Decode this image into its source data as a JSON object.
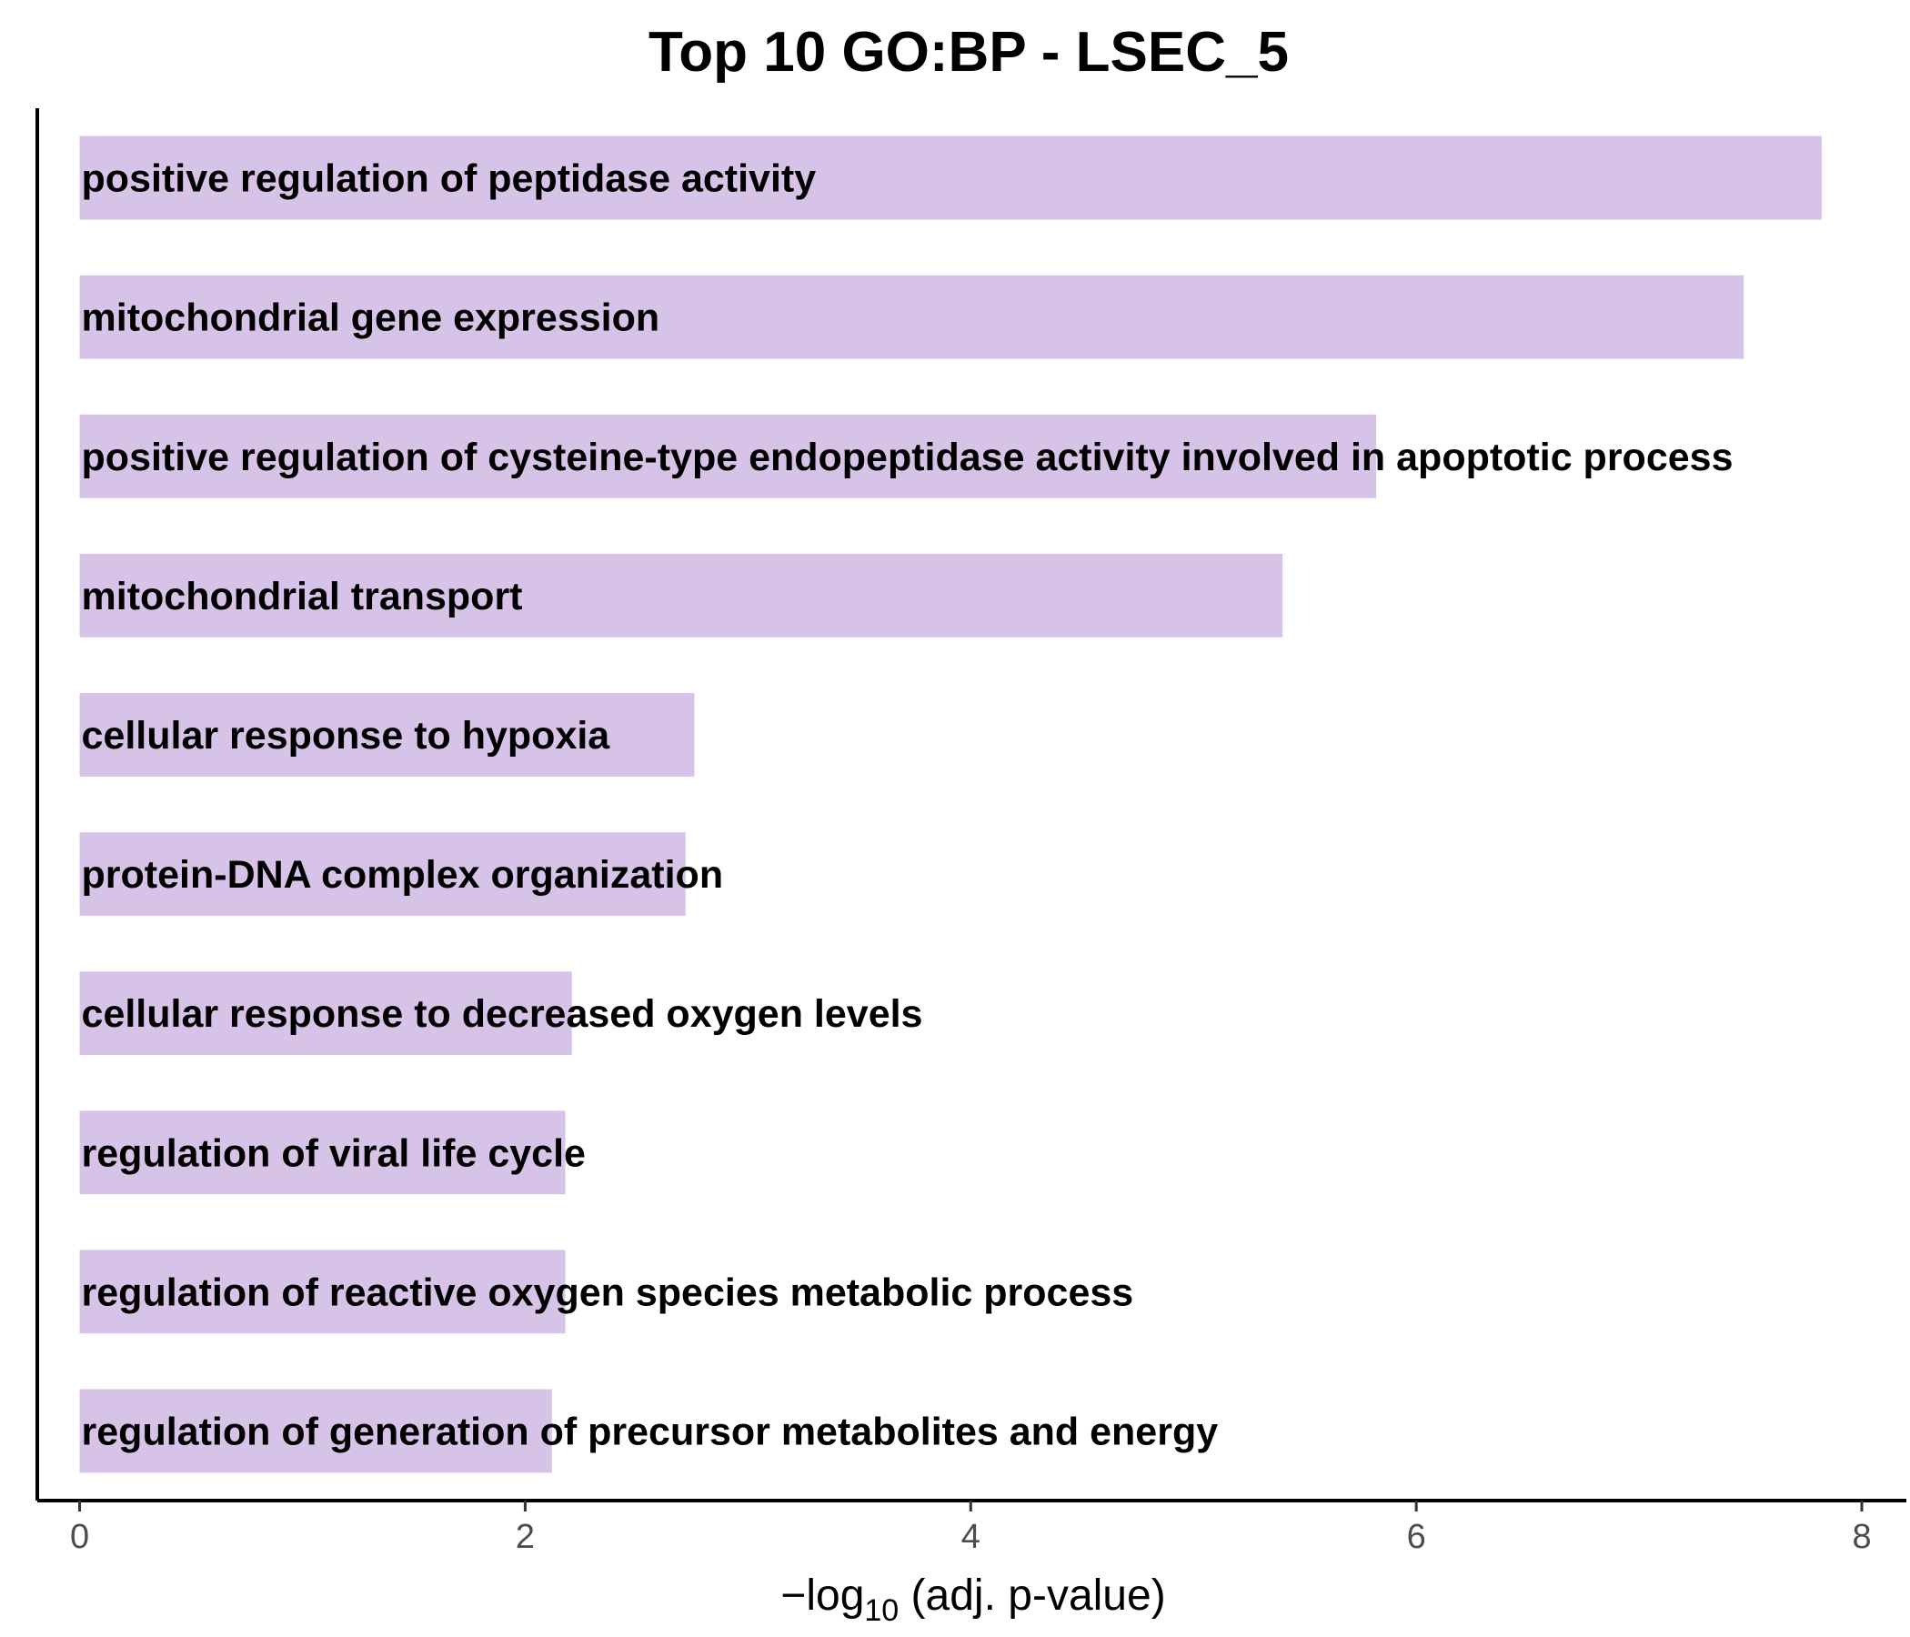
{
  "chart_data": {
    "type": "bar",
    "orientation": "horizontal",
    "title": "Top 10 GO:BP - LSEC_5",
    "xlabel": {
      "prefix": "−log",
      "subscript": "10",
      "suffix": " (adj. p-value)"
    },
    "ylabel": "",
    "xlim": [
      -0.19,
      8.2
    ],
    "xticks": [
      0,
      2,
      4,
      6,
      8
    ],
    "bar_color": "#d8c3e8",
    "grid": false,
    "legend": "none",
    "categories": [
      "positive regulation of peptidase activity",
      "mitochondrial gene expression",
      "positive regulation of cysteine-type endopeptidase activity involved in apoptotic process",
      "mitochondrial transport",
      "cellular response to hypoxia",
      "protein-DNA complex organization",
      "cellular response to decreased oxygen levels",
      "regulation of viral life cycle",
      "regulation of reactive oxygen species metabolic process",
      "regulation of generation of precursor metabolites and energy"
    ],
    "values": [
      7.82,
      7.47,
      5.82,
      5.4,
      2.76,
      2.72,
      2.21,
      2.18,
      2.18,
      2.12
    ]
  }
}
